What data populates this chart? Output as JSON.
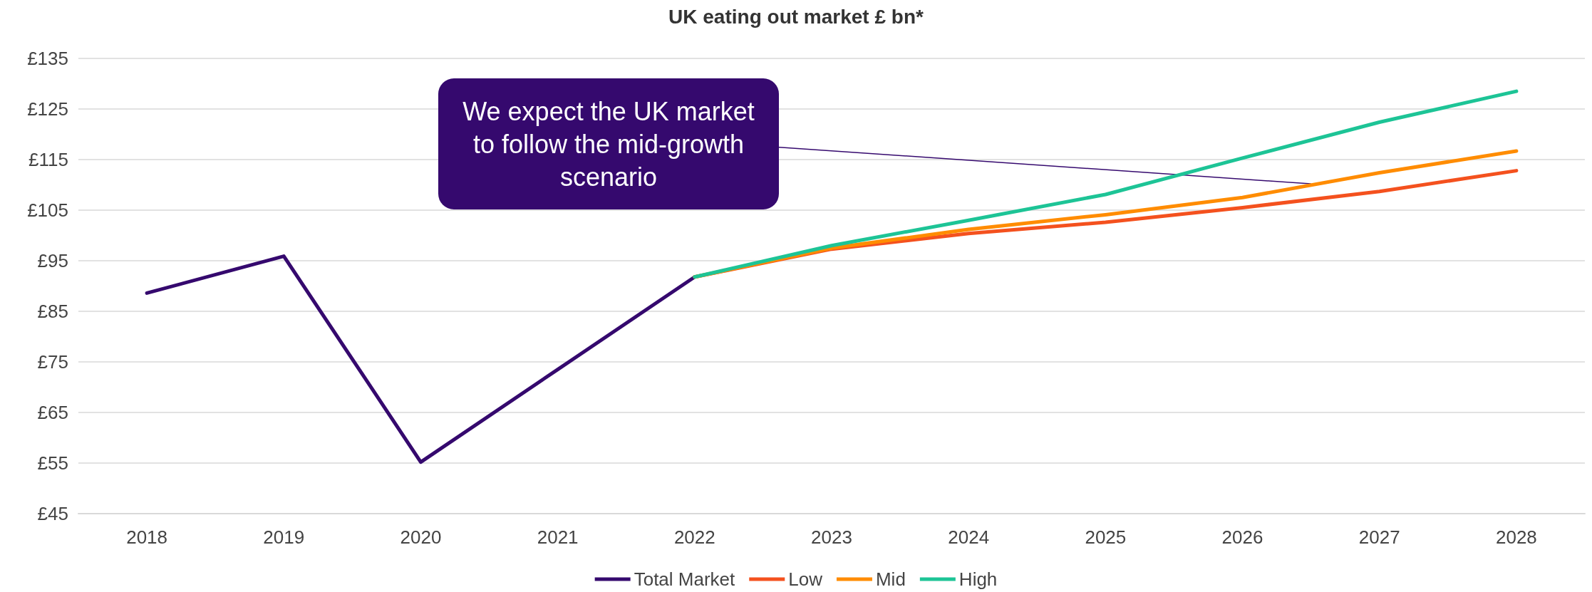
{
  "chart_data": {
    "type": "line",
    "title": "UK eating out market £ bn*",
    "x": [
      2018,
      2019,
      2020,
      2021,
      2022,
      2023,
      2024,
      2025,
      2026,
      2027,
      2028
    ],
    "xlim": [
      2017.5,
      2028.5
    ],
    "xticks": [
      {
        "value": 2018,
        "label": "2018"
      },
      {
        "value": 2019,
        "label": "2019"
      },
      {
        "value": 2020,
        "label": "2020"
      },
      {
        "value": 2021,
        "label": "2021"
      },
      {
        "value": 2022,
        "label": "2022"
      },
      {
        "value": 2023,
        "label": "2023"
      },
      {
        "value": 2024,
        "label": "2024"
      },
      {
        "value": 2025,
        "label": "2025"
      },
      {
        "value": 2026,
        "label": "2026"
      },
      {
        "value": 2027,
        "label": "2027"
      },
      {
        "value": 2028,
        "label": "2028"
      }
    ],
    "ylim": [
      45,
      135
    ],
    "yticks": [
      {
        "value": 45,
        "label": "£45"
      },
      {
        "value": 55,
        "label": "£55"
      },
      {
        "value": 65,
        "label": "£65"
      },
      {
        "value": 75,
        "label": "£75"
      },
      {
        "value": 85,
        "label": "£85"
      },
      {
        "value": 95,
        "label": "£95"
      },
      {
        "value": 105,
        "label": "£105"
      },
      {
        "value": 115,
        "label": "£115"
      },
      {
        "value": 125,
        "label": "£125"
      },
      {
        "value": 135,
        "label": "£135"
      }
    ],
    "series": [
      {
        "name": "Total Market",
        "color": "#35096e",
        "values": [
          88.6,
          95.9,
          55.2,
          73.5,
          91.8,
          null,
          null,
          null,
          null,
          null,
          null
        ]
      },
      {
        "name": "Low",
        "color": "#f4511e",
        "values": [
          null,
          null,
          null,
          null,
          91.8,
          97.3,
          100.4,
          102.6,
          105.5,
          108.7,
          112.8
        ]
      },
      {
        "name": "Mid",
        "color": "#ff8c00",
        "values": [
          null,
          null,
          null,
          null,
          91.8,
          97.5,
          101.2,
          104.1,
          107.5,
          112.4,
          116.7
        ]
      },
      {
        "name": "High",
        "color": "#1dc496",
        "values": [
          null,
          null,
          null,
          null,
          91.8,
          98,
          103,
          108.1,
          115.3,
          122.4,
          128.5
        ]
      }
    ],
    "annotations": [
      {
        "text": "We expect the UK market to follow the mid-growth scenario",
        "x": 2026.5,
        "y": 110.2
      }
    ],
    "grid": "y",
    "legend": "bottom",
    "marker": "none",
    "line_style": "solid"
  }
}
